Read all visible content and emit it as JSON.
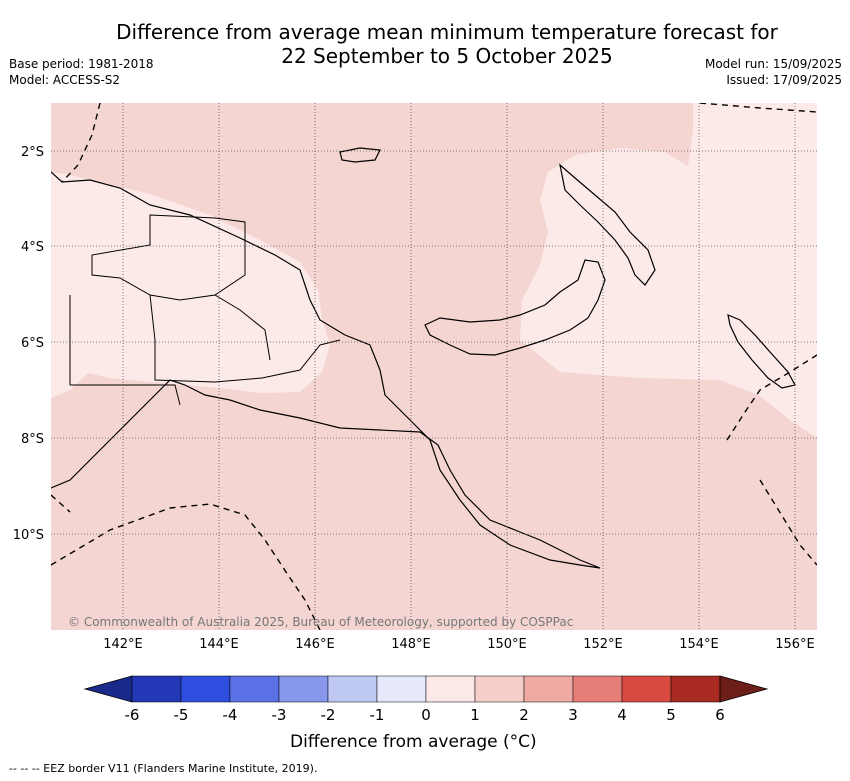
{
  "title_line1": "Difference from average mean minimum temperature forecast for",
  "title_line2": "22 September to 5 October 2025",
  "base_period": "Base period: 1981-2018",
  "model": "Model: ACCESS-S2",
  "model_run": "Model run: 15/09/2025",
  "issued": "Issued: 17/09/2025",
  "lat_labels": [
    "2°S",
    "4°S",
    "6°S",
    "8°S",
    "10°S"
  ],
  "lon_labels": [
    "142°E",
    "144°E",
    "146°E",
    "148°E",
    "150°E",
    "152°E",
    "154°E",
    "156°E"
  ],
  "copyright": "© Commonwealth of Australia 2025, Bureau of Meteorology, supported by COSPPac",
  "colorbar": {
    "title": "Difference from average (°C)",
    "ticks": [
      "-6",
      "-5",
      "-4",
      "-3",
      "-2",
      "-1",
      "0",
      "1",
      "2",
      "3",
      "4",
      "5",
      "6"
    ],
    "colors": [
      "#1a2a8a",
      "#2238b6",
      "#2f4ddf",
      "#5a72e6",
      "#8797ec",
      "#c0c8f4",
      "#e6e9fb",
      "#fce8e6",
      "#f6cfcb",
      "#efaaa4",
      "#e57e76",
      "#d84a40",
      "#a82a22",
      "#6e1e18"
    ]
  },
  "categories": {
    "0 to 1": "#fbeae8",
    "1 to 2": "#f5d5d1"
  },
  "footer": "--  --  -- EEZ border V11 (Flanders Marine Institute, 2019)."
}
